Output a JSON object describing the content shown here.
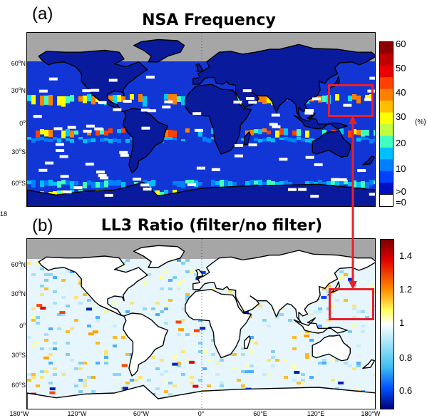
{
  "panel_a": {
    "letter": "(a)",
    "title": "NSA Frequency",
    "lat_labels": [
      {
        "text": "60",
        "hemi": "N"
      },
      {
        "text": "30",
        "hemi": "N"
      },
      {
        "text": "0",
        "hemi": ""
      },
      {
        "text": "30",
        "hemi": "S"
      },
      {
        "text": "60",
        "hemi": "S"
      }
    ],
    "colorbar": {
      "ticks": [
        "60",
        "50",
        "40",
        "30",
        "20",
        "10",
        ">0",
        "=0"
      ],
      "unit": "(%)",
      "colors": [
        "#8b0000",
        "#c00000",
        "#e60000",
        "#ff4000",
        "#ff8000",
        "#ffbf00",
        "#ffff00",
        "#bfff40",
        "#40ffbf",
        "#00bfff",
        "#0080ff",
        "#0040ff",
        "#0010c0",
        "#ffffff"
      ]
    }
  },
  "panel_b": {
    "letter": "(b)",
    "title": "LL3 Ratio (filter/no filter)",
    "lat_labels": [
      {
        "text": "60",
        "hemi": "N"
      },
      {
        "text": "30",
        "hemi": "N"
      },
      {
        "text": "0",
        "hemi": ""
      },
      {
        "text": "30",
        "hemi": "S"
      },
      {
        "text": "60",
        "hemi": "S"
      }
    ],
    "colorbar": {
      "ticks": [
        "1.4",
        "1.2",
        "1",
        "0.8",
        "0.6"
      ]
    }
  },
  "lon_labels": [
    "180°W",
    "120°W",
    "60°W",
    "0°",
    "60°E",
    "120°E",
    "180°W"
  ],
  "clipped_label": "18",
  "colors": {
    "ocean_a": "#1236d6",
    "land_a": "#0a1a9c",
    "polar_gray": "#a6a6a6",
    "highlight_red": "#e8202a",
    "ocean_b": "#e6f6fc"
  }
}
